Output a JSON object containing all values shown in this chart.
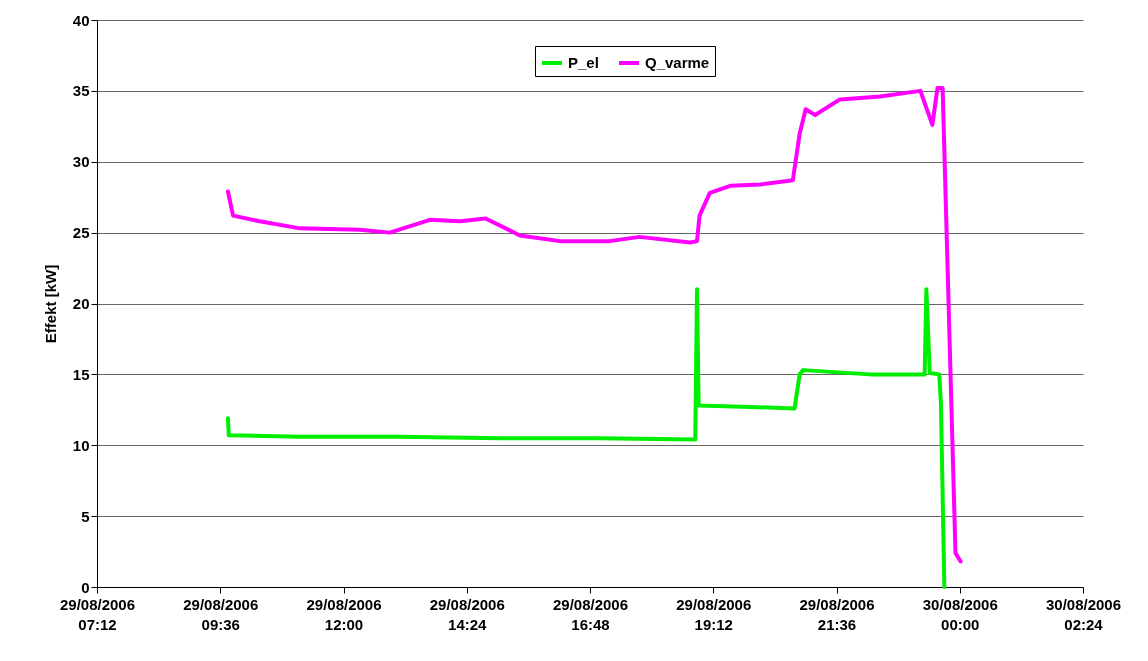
{
  "chart_data": {
    "type": "line",
    "ylabel": "Effekt [kW]",
    "legend": "top",
    "grid": "y",
    "marker": "none",
    "line_style": "solid",
    "xlim": [
      "2006-08-29T07:12",
      "2006-08-30T02:24"
    ],
    "xticks": [
      {
        "value": "2006-08-29T07:12",
        "label": "29/08/2006\n07:12"
      },
      {
        "value": "2006-08-29T09:36",
        "label": "29/08/2006\n09:36"
      },
      {
        "value": "2006-08-29T12:00",
        "label": "29/08/2006\n12:00"
      },
      {
        "value": "2006-08-29T14:24",
        "label": "29/08/2006\n14:24"
      },
      {
        "value": "2006-08-29T16:48",
        "label": "29/08/2006\n16:48"
      },
      {
        "value": "2006-08-29T19:12",
        "label": "29/08/2006\n19:12"
      },
      {
        "value": "2006-08-29T21:36",
        "label": "29/08/2006\n21:36"
      },
      {
        "value": "2006-08-30T00:00",
        "label": "30/08/2006\n00:00"
      },
      {
        "value": "2006-08-30T02:24",
        "label": "30/08/2006\n02:24"
      }
    ],
    "ylim": [
      0,
      40
    ],
    "yticks": [
      0,
      5,
      10,
      15,
      20,
      25,
      30,
      35,
      40
    ],
    "series": [
      {
        "name": "P_el",
        "color": "#00ee00",
        "x": [
          "2006-08-29T09:45",
          "2006-08-29T09:46",
          "2006-08-29T11:09",
          "2006-08-29T13:06",
          "2006-08-29T15:03",
          "2006-08-29T17:00",
          "2006-08-29T18:51",
          "2006-08-29T18:53",
          "2006-08-29T18:55",
          "2006-08-29T19:55",
          "2006-08-29T20:47",
          "2006-08-29T20:53",
          "2006-08-29T20:57",
          "2006-08-29T22:15",
          "2006-08-29T23:19",
          "2006-08-29T23:21",
          "2006-08-29T23:25",
          "2006-08-29T23:36",
          "2006-08-29T23:38",
          "2006-08-29T23:42"
        ],
        "values": [
          11.9,
          10.7,
          10.6,
          10.6,
          10.5,
          10.5,
          10.4,
          21.0,
          12.8,
          12.7,
          12.6,
          15.0,
          15.3,
          15.0,
          15.0,
          21.0,
          15.1,
          15.0,
          13.0,
          0
        ]
      },
      {
        "name": "Q_varme",
        "color": "#ff00ff",
        "x": [
          "2006-08-29T09:45",
          "2006-08-29T09:51",
          "2006-08-29T10:22",
          "2006-08-29T11:09",
          "2006-08-29T12:19",
          "2006-08-29T12:54",
          "2006-08-29T13:41",
          "2006-08-29T14:16",
          "2006-08-29T14:46",
          "2006-08-29T15:26",
          "2006-08-29T16:13",
          "2006-08-29T17:11",
          "2006-08-29T17:46",
          "2006-08-29T18:45",
          "2006-08-29T18:53",
          "2006-08-29T18:56",
          "2006-08-29T19:08",
          "2006-08-29T19:32",
          "2006-08-29T20:07",
          "2006-08-29T20:45",
          "2006-08-29T20:53",
          "2006-08-29T21:00",
          "2006-08-29T21:11",
          "2006-08-29T21:40",
          "2006-08-29T22:27",
          "2006-08-29T23:14",
          "2006-08-29T23:28",
          "2006-08-29T23:34",
          "2006-08-29T23:40",
          "2006-08-29T23:55",
          "2006-08-30T00:01"
        ],
        "values": [
          27.9,
          26.2,
          25.8,
          25.3,
          25.2,
          25.0,
          25.9,
          25.8,
          26.0,
          24.8,
          24.4,
          24.4,
          24.7,
          24.3,
          24.4,
          26.2,
          27.8,
          28.3,
          28.4,
          28.7,
          32.0,
          33.7,
          33.3,
          34.4,
          34.6,
          35.0,
          32.6,
          35.2,
          35.2,
          2.4,
          1.8
        ]
      }
    ]
  }
}
